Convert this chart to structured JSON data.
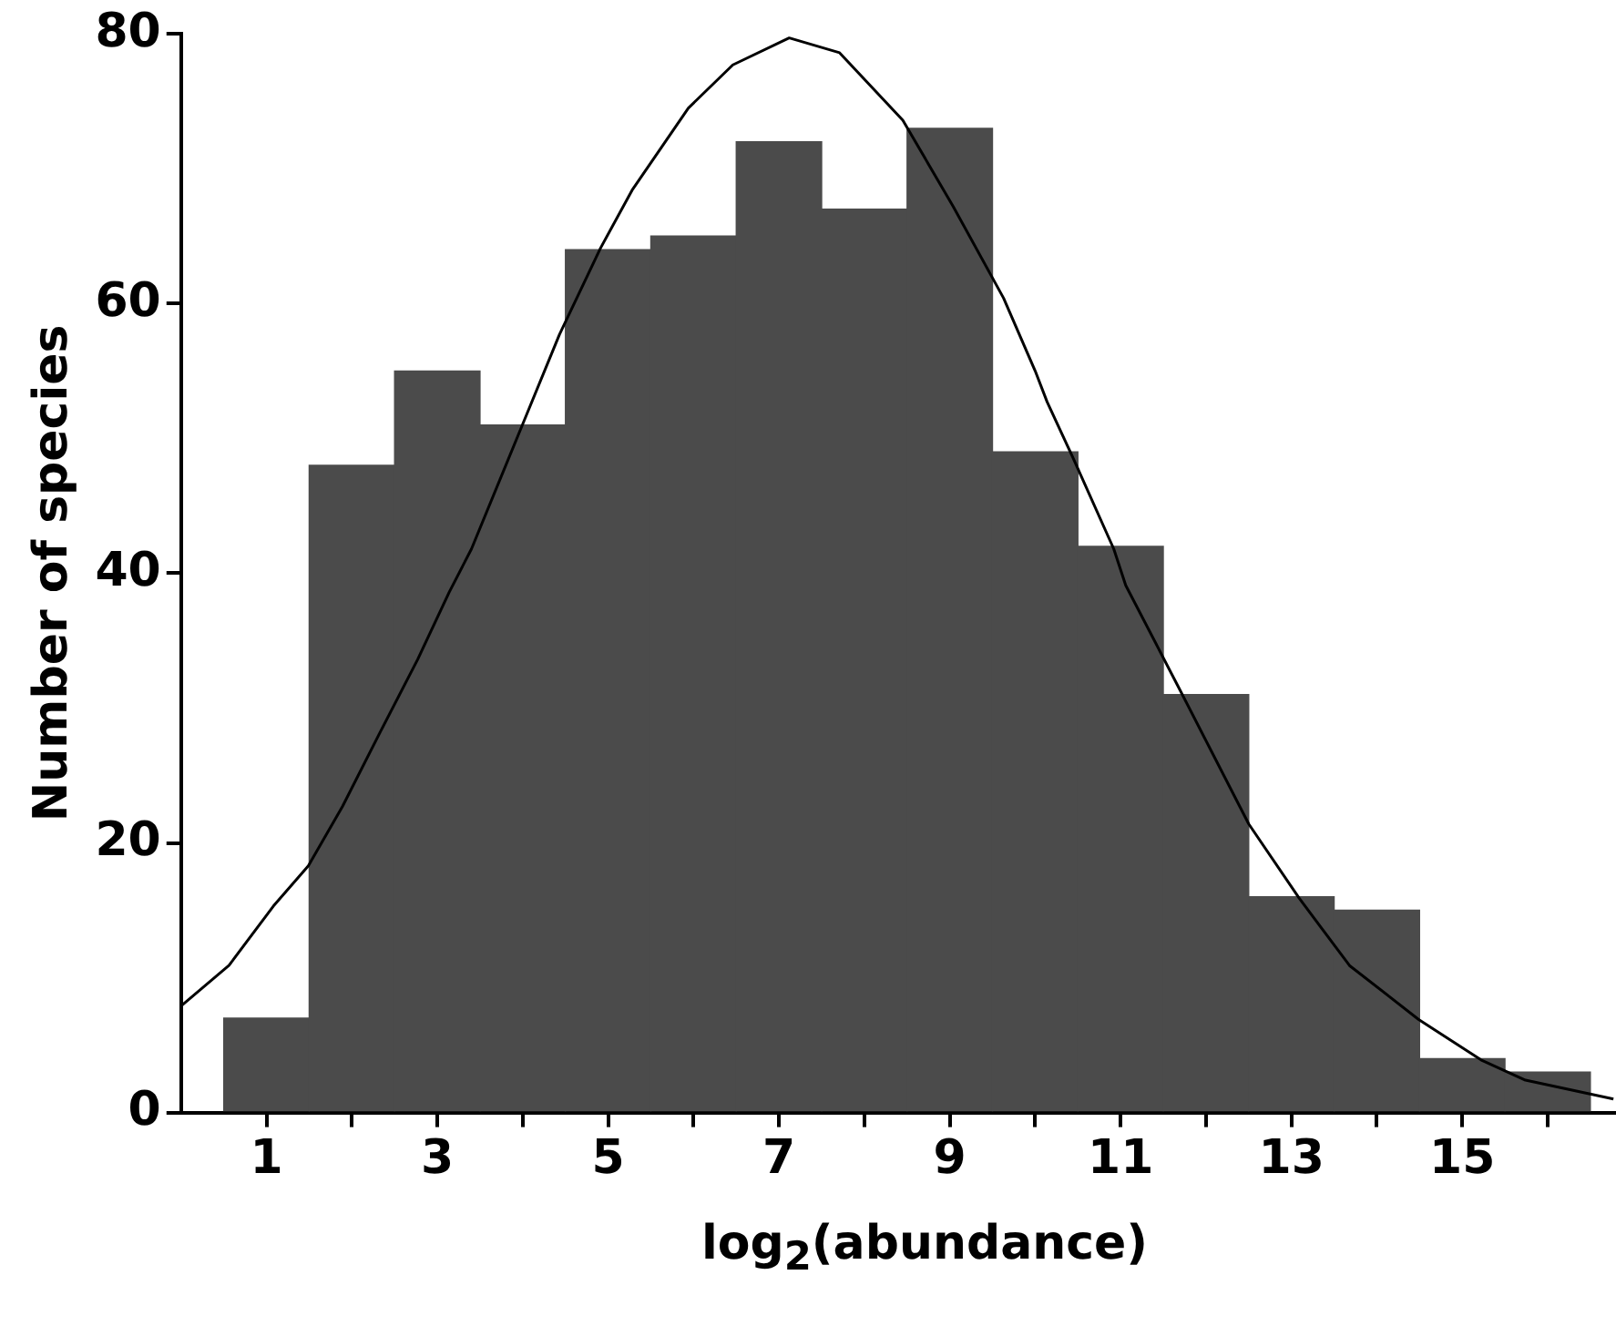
{
  "chart_data": {
    "type": "histogram",
    "xlabel": "log$_{2}$(abundance)",
    "ylabel": "Number of species",
    "bins": [
      0.5,
      1.5,
      2.5,
      3.5,
      4.5,
      5.5,
      6.5,
      7.5,
      8.5,
      9.5,
      10.5,
      11.5,
      12.5,
      13.5,
      14.5,
      15.5,
      16.5
    ],
    "values": [
      7,
      48,
      55,
      51,
      64,
      65,
      72,
      67,
      73,
      49,
      42,
      31,
      16,
      15,
      4,
      3
    ],
    "color": "#4b4b4b",
    "series": [
      {
        "type": "line",
        "color": "#000000",
        "x": [
          0.0,
          0.56,
          1.08,
          1.49,
          1.89,
          2.33,
          2.77,
          3.14,
          3.4,
          3.99,
          4.43,
          4.91,
          5.28,
          5.94,
          6.46,
          7.12,
          7.71,
          8.45,
          9.04,
          9.63,
          10.0,
          10.14,
          10.44,
          10.92,
          11.06,
          11.69,
          12.5,
          13.09,
          13.68,
          14.49,
          15.22,
          15.74,
          16.77
        ],
        "values": [
          7.9,
          10.9,
          15.3,
          18.3,
          22.7,
          28.2,
          33.6,
          38.6,
          41.8,
          50.9,
          57.7,
          64.1,
          68.4,
          74.5,
          77.7,
          79.7,
          78.6,
          73.6,
          67.2,
          60.4,
          55.0,
          52.7,
          48.6,
          41.8,
          39.1,
          31.4,
          21.4,
          15.9,
          10.9,
          6.9,
          3.9,
          2.4,
          1.0
        ]
      }
    ],
    "xlim": [
      0,
      16.8
    ],
    "xticks": [
      1,
      {
        "value": 2,
        "label": null
      },
      3,
      {
        "value": 4,
        "label": null
      },
      5,
      {
        "value": 6,
        "label": null
      },
      7,
      {
        "value": 8,
        "label": null
      },
      9,
      {
        "value": 10,
        "label": null
      },
      11,
      {
        "value": 12,
        "label": null
      },
      13,
      {
        "value": 14,
        "label": null
      },
      15,
      {
        "value": 16,
        "label": null
      }
    ],
    "ylim": [
      0,
      80
    ],
    "yticks": [
      0,
      20,
      40,
      60,
      80
    ],
    "grid": false,
    "legend": false,
    "marker": "none",
    "line_style": "solid"
  }
}
